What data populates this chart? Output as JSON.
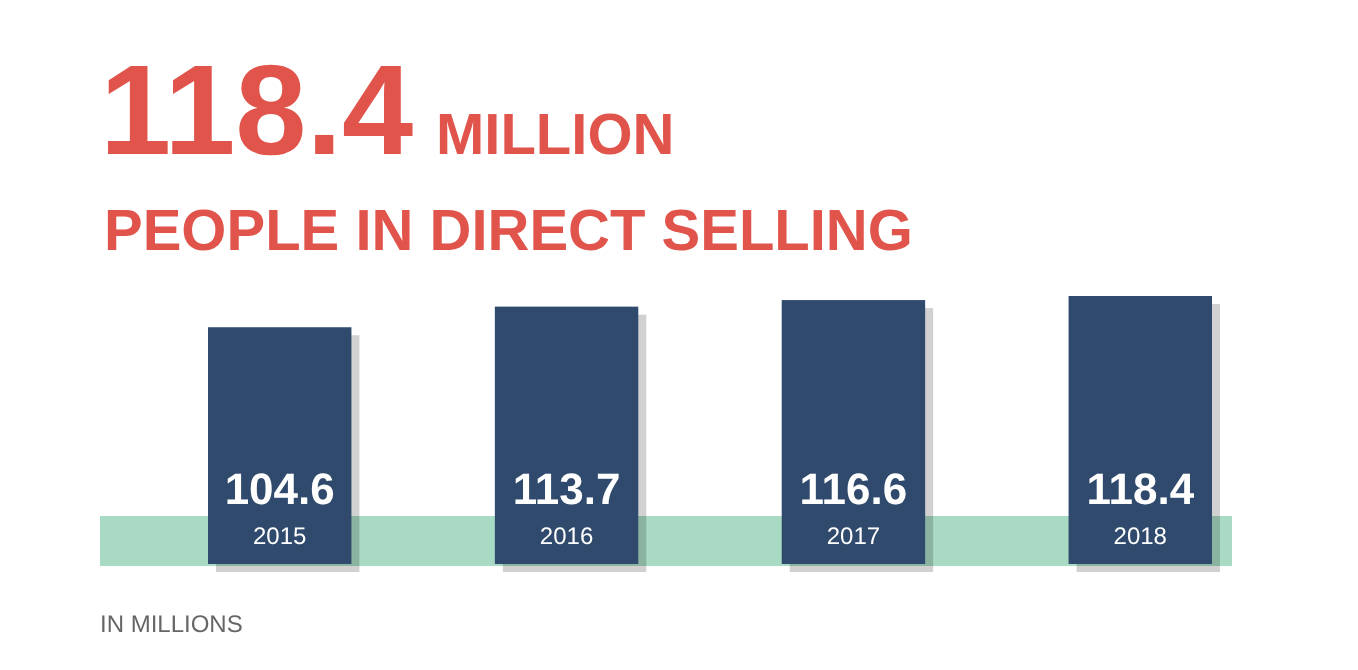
{
  "chart_data": {
    "type": "bar",
    "title": "118.4",
    "subtitle": "MILLION PEOPLE IN DIRECT SELLING",
    "categories": [
      "2015",
      "2016",
      "2017",
      "2018"
    ],
    "values": [
      104.6,
      113.7,
      116.6,
      118.4
    ],
    "color": "#2f4a6c",
    "data_labels": true,
    "annotations": [
      "IN MILLIONS"
    ]
  }
}
